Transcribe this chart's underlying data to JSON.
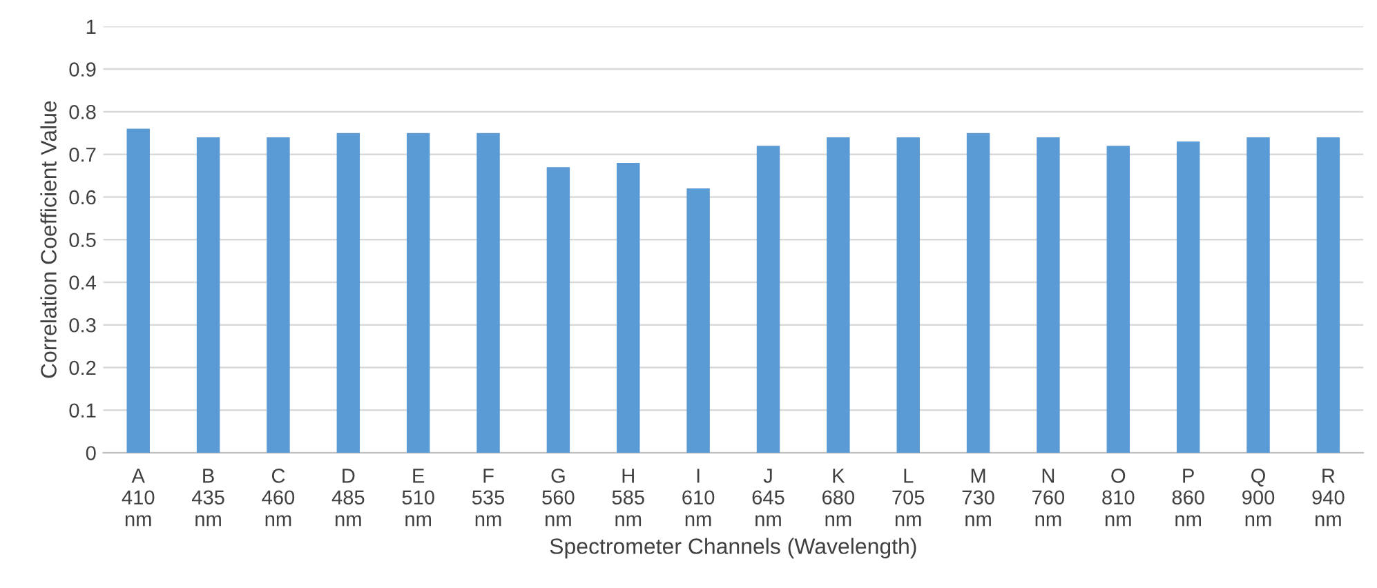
{
  "chart_data": {
    "type": "bar",
    "xlabel": "Spectrometer Channels (Wavelength)",
    "ylabel": "Correlation Coefficient Value",
    "categories": [
      "A\n410\nnm",
      "B\n435\nnm",
      "C\n460\nnm",
      "D\n485\nnm",
      "E\n510\nnm",
      "F\n535\nnm",
      "G\n560\nnm",
      "H\n585\nnm",
      "I\n610\nnm",
      "J\n645\nnm",
      "K\n680\nnm",
      "L\n705\nnm",
      "M\n730\nnm",
      "N\n760\nnm",
      "O\n810\nnm",
      "P\n860\nnm",
      "Q\n900\nnm",
      "R\n940\nnm"
    ],
    "values": [
      0.76,
      0.74,
      0.74,
      0.75,
      0.75,
      0.75,
      0.67,
      0.68,
      0.62,
      0.72,
      0.74,
      0.74,
      0.75,
      0.74,
      0.72,
      0.73,
      0.74,
      0.74
    ],
    "color": "#5b9bd5",
    "ylim": [
      0,
      1
    ],
    "yticks": [
      0,
      0.1,
      0.2,
      0.3,
      0.4,
      0.5,
      0.6,
      0.7,
      0.8,
      0.9,
      1
    ],
    "grid": "y",
    "legend": false
  }
}
